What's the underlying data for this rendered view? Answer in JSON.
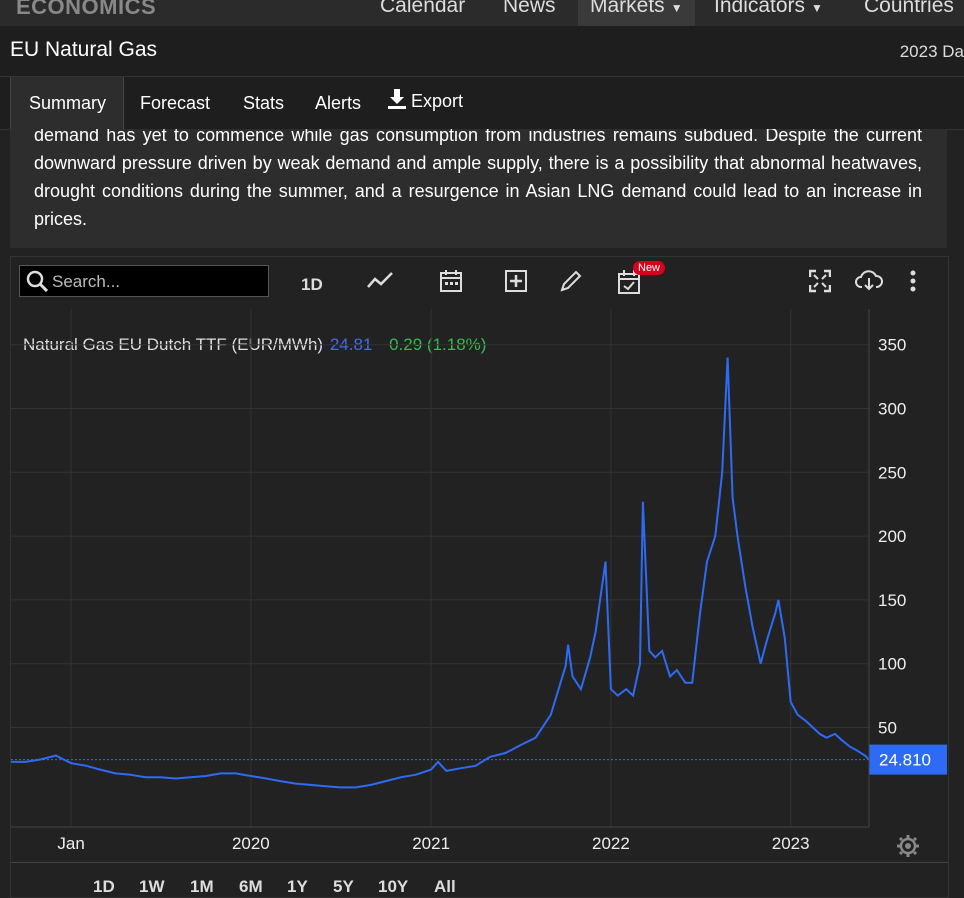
{
  "site": {
    "logo": "ECONOMICS"
  },
  "nav": {
    "calendar": "Calendar",
    "news": "News",
    "markets": "Markets",
    "indicators": "Indicators",
    "countries": "Countries"
  },
  "header": {
    "title": "EU Natural Gas",
    "right_text": "2023 Da"
  },
  "tabs": {
    "summary": "Summary",
    "forecast": "Forecast",
    "stats": "Stats",
    "alerts": "Alerts",
    "export": "Export"
  },
  "summary_text": "demand has yet to commence while gas consumption from industries remains subdued. Despite the current downward pressure driven by weak demand and ample supply, there is a possibility that abnormal heatwaves, drought conditions during the summer, and a resurgence in Asian LNG demand could lead to an increase in prices.",
  "toolbar": {
    "search_placeholder": "Search...",
    "interval": "1D",
    "new_badge": "New",
    "icons": [
      "search-icon",
      "line-chart-icon",
      "calendar-icon",
      "add-icon",
      "pencil-icon",
      "calendar-check-icon",
      "fullscreen-icon",
      "cloud-download-icon",
      "more-icon"
    ]
  },
  "legend": {
    "name": "Natural Gas EU Dutch TTF (EUR/MWh)",
    "price": "24.81",
    "change": "0.29 (1.18%)"
  },
  "current_price_label": "24.810",
  "ranges": [
    "1D",
    "1W",
    "1M",
    "6M",
    "1Y",
    "5Y",
    "10Y",
    "All"
  ],
  "colors": {
    "line": "#2e6bf5",
    "change_positive": "#2fbf4a",
    "price_tag": "#2e6bf5"
  },
  "chart_data": {
    "type": "line",
    "xlabel": "",
    "ylabel": "",
    "x_tick_labels": [
      "Jan",
      "2020",
      "2021",
      "2022",
      "2023"
    ],
    "y_tick_labels": [
      "50",
      "100",
      "150",
      "200",
      "250",
      "300",
      "350"
    ],
    "ylim": [
      -28,
      378
    ],
    "xlim": [
      "2018-09-01",
      "2023-06-09"
    ],
    "grid": true,
    "series": [
      {
        "name": "Natural Gas EU Dutch TTF (EUR/MWh)",
        "x": [
          "2018-09-01",
          "2018-10-01",
          "2018-11-01",
          "2018-12-01",
          "2019-01-01",
          "2019-02-01",
          "2019-03-01",
          "2019-04-01",
          "2019-05-01",
          "2019-06-01",
          "2019-07-01",
          "2019-08-01",
          "2019-09-01",
          "2019-10-01",
          "2019-11-01",
          "2019-12-01",
          "2020-01-01",
          "2020-02-01",
          "2020-03-01",
          "2020-04-01",
          "2020-05-01",
          "2020-06-01",
          "2020-07-01",
          "2020-08-01",
          "2020-09-01",
          "2020-10-01",
          "2020-11-01",
          "2020-12-01",
          "2021-01-01",
          "2021-01-15",
          "2021-02-01",
          "2021-03-01",
          "2021-04-01",
          "2021-05-01",
          "2021-06-01",
          "2021-07-01",
          "2021-08-01",
          "2021-09-01",
          "2021-10-01",
          "2021-10-06",
          "2021-10-15",
          "2021-11-01",
          "2021-11-20",
          "2021-12-01",
          "2021-12-21",
          "2022-01-01",
          "2022-01-15",
          "2022-02-01",
          "2022-02-15",
          "2022-03-01",
          "2022-03-07",
          "2022-03-20",
          "2022-04-01",
          "2022-04-15",
          "2022-05-01",
          "2022-05-15",
          "2022-06-01",
          "2022-06-15",
          "2022-07-01",
          "2022-07-15",
          "2022-08-01",
          "2022-08-15",
          "2022-08-26",
          "2022-09-05",
          "2022-09-15",
          "2022-10-01",
          "2022-10-15",
          "2022-11-01",
          "2022-11-15",
          "2022-12-01",
          "2022-12-07",
          "2022-12-20",
          "2023-01-01",
          "2023-01-15",
          "2023-02-01",
          "2023-02-15",
          "2023-03-01",
          "2023-03-15",
          "2023-04-01",
          "2023-04-15",
          "2023-05-01",
          "2023-05-15",
          "2023-06-01",
          "2023-06-09"
        ],
        "y": [
          23,
          23,
          25,
          28,
          22,
          20,
          17,
          14,
          13,
          11,
          11,
          10,
          11,
          12,
          14,
          14,
          12,
          10,
          8,
          6,
          5,
          4,
          3,
          3,
          5,
          8,
          11,
          13,
          17,
          23,
          16,
          18,
          20,
          27,
          30,
          36,
          42,
          60,
          98,
          115,
          90,
          80,
          105,
          125,
          180,
          80,
          75,
          80,
          75,
          100,
          227,
          110,
          105,
          110,
          90,
          95,
          85,
          85,
          140,
          180,
          200,
          250,
          340,
          230,
          200,
          160,
          130,
          100,
          120,
          140,
          150,
          120,
          70,
          60,
          55,
          50,
          45,
          42,
          45,
          40,
          35,
          32,
          28,
          24.81
        ]
      }
    ]
  }
}
